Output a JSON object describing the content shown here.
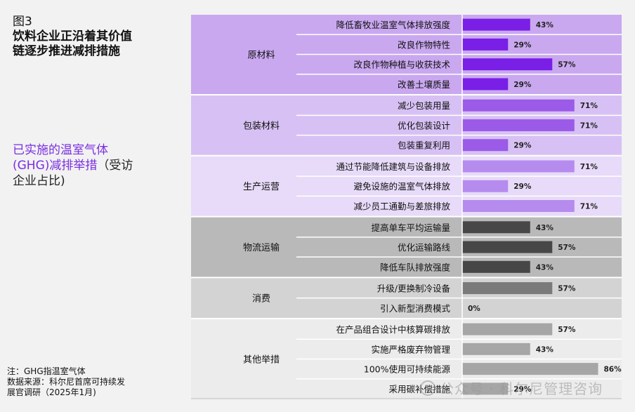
{
  "figure_label": "图3",
  "figure_title": "饮料企业正沿着其价值\n链逐步推进减排措施",
  "subtitle_accent": "已实施的温室气体(GHG)减排举措",
  "subtitle_rest": "（受访企业占比)",
  "footnotes": [
    "注：GHG指温室气体",
    "数据来源：科尔尼首席可持续发",
    "展官调研（2025年1月)"
  ],
  "watermark": "公众号 · 科尔尼管理咨询",
  "colors": {
    "page_bg": "#f2f2f2",
    "accent_text": "#7a2ee0"
  },
  "chart_data": {
    "type": "bar",
    "orientation": "horizontal",
    "value_format": "percent",
    "xlim": [
      0,
      100
    ],
    "groups": [
      {
        "name": "原材料",
        "bg": "#c9a8f0",
        "bar_color": "#7a1fe6",
        "items": [
          {
            "label": "降低畜牧业温室气体排放强度",
            "value": 43
          },
          {
            "label": "改良作物特性",
            "value": 29
          },
          {
            "label": "改良作物种植与收获技术",
            "value": 57
          },
          {
            "label": "改善土壤质量",
            "value": 29
          }
        ]
      },
      {
        "name": "包装材料",
        "bg": "#d7c1f4",
        "bar_color": "#9b5ae8",
        "items": [
          {
            "label": "减少包装用量",
            "value": 71
          },
          {
            "label": "优化包装设计",
            "value": 71
          },
          {
            "label": "包装重复利用",
            "value": 29
          }
        ]
      },
      {
        "name": "生产运营",
        "bg": "#e7dbf9",
        "bar_color": "#b68bee",
        "items": [
          {
            "label": "通过节能降低建筑与设备排放",
            "value": 71
          },
          {
            "label": "避免设施的温室气体排放",
            "value": 29
          },
          {
            "label": "减少员工通勤与差旅排放",
            "value": 71
          }
        ]
      },
      {
        "name": "物流运输",
        "bg": "#b9b9b9",
        "bar_color": "#474747",
        "items": [
          {
            "label": "提高单车平均运输量",
            "value": 43
          },
          {
            "label": "优化运输路线",
            "value": 57
          },
          {
            "label": "降低车队排放强度",
            "value": 43
          }
        ]
      },
      {
        "name": "消费",
        "bg": "#d3d3d3",
        "bar_color": "#7a7a7a",
        "items": [
          {
            "label": "升级/更换制冷设备",
            "value": 57
          },
          {
            "label": "引入新型消费模式",
            "value": 0
          }
        ]
      },
      {
        "name": "其他举措",
        "bg": "#ececec",
        "bar_color": "#a6a6a6",
        "items": [
          {
            "label": "在产品组合设计中核算碳排放",
            "value": 57
          },
          {
            "label": "实施严格废弃物管理",
            "value": 43
          },
          {
            "label": "100%使用可持续能源",
            "value": 86
          },
          {
            "label": "采用碳补偿措施",
            "value": 29
          }
        ]
      }
    ]
  }
}
